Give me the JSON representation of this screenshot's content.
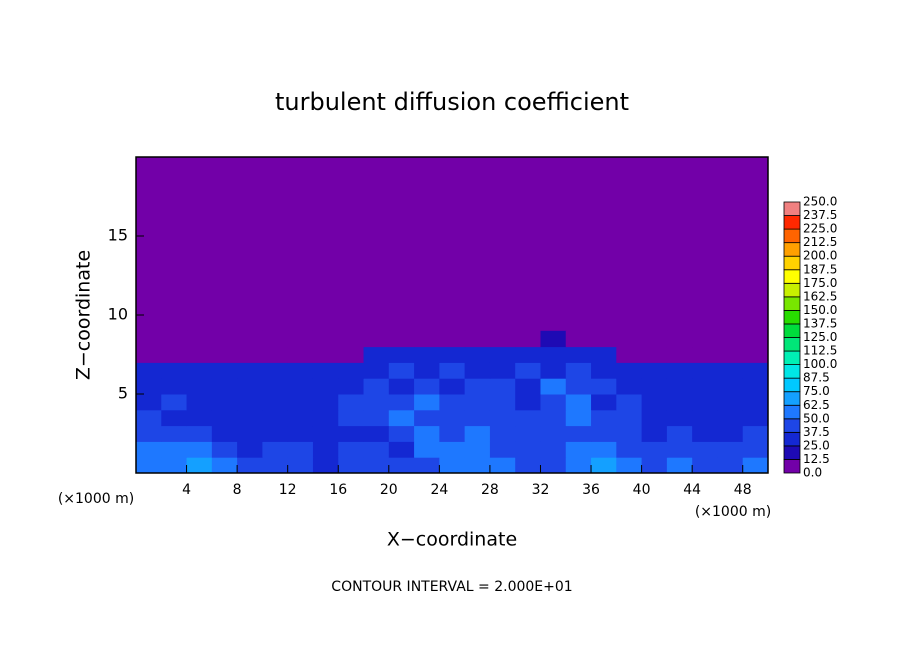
{
  "chart_data": {
    "type": "heatmap",
    "title": "turbulent diffusion coefficient",
    "xlabel": "X−coordinate",
    "ylabel": "Z−coordinate",
    "x_unit": "(×1000 m)",
    "note": "CONTOUR INTERVAL = 2.000E+01",
    "xlim": [
      0,
      50
    ],
    "ylim": [
      0,
      20
    ],
    "xticks": [
      4,
      8,
      12,
      16,
      20,
      24,
      28,
      32,
      36,
      40,
      44,
      48
    ],
    "yticks": [
      5,
      10,
      15
    ],
    "x": [
      1,
      3,
      5,
      7,
      9,
      11,
      13,
      15,
      17,
      19,
      21,
      23,
      25,
      27,
      29,
      31,
      33,
      35,
      37,
      39,
      41,
      43,
      45,
      47,
      49
    ],
    "z": [
      0.5,
      1.5,
      2.5,
      3.5,
      4.5,
      5.5,
      6.5,
      7.5,
      8.5
    ],
    "values": [
      [
        62,
        55,
        70,
        50,
        40,
        38,
        45,
        35,
        42,
        40,
        38,
        45,
        60,
        55,
        50,
        48,
        42,
        55,
        65,
        60,
        45,
        55,
        45,
        40,
        50
      ],
      [
        55,
        60,
        50,
        45,
        35,
        40,
        38,
        33,
        40,
        38,
        35,
        50,
        55,
        60,
        45,
        40,
        45,
        55,
        50,
        45,
        40,
        42,
        38,
        45,
        40
      ],
      [
        45,
        40,
        38,
        35,
        30,
        35,
        33,
        30,
        35,
        35,
        40,
        55,
        45,
        52,
        38,
        48,
        45,
        40,
        38,
        45,
        35,
        38,
        35,
        30,
        38
      ],
      [
        40,
        35,
        33,
        30,
        25,
        33,
        30,
        28,
        38,
        40,
        52,
        45,
        42,
        48,
        45,
        40,
        48,
        50,
        40,
        42,
        35,
        32,
        33,
        30,
        35
      ],
      [
        35,
        38,
        30,
        32,
        28,
        30,
        35,
        30,
        42,
        45,
        38,
        55,
        38,
        42,
        40,
        35,
        45,
        55,
        35,
        38,
        33,
        30,
        32,
        30,
        33
      ],
      [
        33,
        35,
        32,
        30,
        30,
        28,
        32,
        30,
        35,
        38,
        35,
        40,
        35,
        38,
        40,
        30,
        50,
        42,
        38,
        35,
        32,
        30,
        33,
        28,
        30
      ],
      [
        30,
        28,
        30,
        28,
        25,
        25,
        28,
        26,
        30,
        32,
        38,
        35,
        40,
        35,
        35,
        38,
        35,
        40,
        30,
        33,
        30,
        28,
        30,
        25,
        28
      ],
      [
        0,
        0,
        0,
        0,
        0,
        0,
        0,
        0,
        0,
        25,
        30,
        28,
        30,
        28,
        25,
        30,
        28,
        30,
        25,
        0,
        0,
        0,
        0,
        0,
        0
      ],
      [
        0,
        0,
        0,
        0,
        0,
        0,
        0,
        0,
        0,
        0,
        0,
        0,
        0,
        0,
        0,
        0,
        15,
        0,
        0,
        0,
        0,
        0,
        0,
        0,
        0
      ]
    ],
    "colorbar": {
      "levels": [
        {
          "value": 0,
          "label": "0.0"
        },
        {
          "value": 12.5,
          "label": "12.5"
        },
        {
          "value": 25,
          "label": "25.0"
        },
        {
          "value": 37.5,
          "label": "37.5"
        },
        {
          "value": 50,
          "label": "50.0"
        },
        {
          "value": 62.5,
          "label": "62.5"
        },
        {
          "value": 75,
          "label": "75.0"
        },
        {
          "value": 87.5,
          "label": "87.5"
        },
        {
          "value": 100,
          "label": "100.0"
        },
        {
          "value": 112.5,
          "label": "112.5"
        },
        {
          "value": 125,
          "label": "125.0"
        },
        {
          "value": 137.5,
          "label": "137.5"
        },
        {
          "value": 150,
          "label": "150.0"
        },
        {
          "value": 162.5,
          "label": "162.5"
        },
        {
          "value": 175,
          "label": "175.0"
        },
        {
          "value": 187.5,
          "label": "187.5"
        },
        {
          "value": 200,
          "label": "200.0"
        },
        {
          "value": 212.5,
          "label": "212.5"
        },
        {
          "value": 225,
          "label": "225.0"
        },
        {
          "value": 237.5,
          "label": "237.5"
        },
        {
          "value": 250,
          "label": "250.0"
        }
      ],
      "colors": [
        "#7200a8",
        "#1e0ab4",
        "#1428d2",
        "#1e46e6",
        "#1e78ff",
        "#14a0ff",
        "#00c8ff",
        "#00e6e6",
        "#00f0b4",
        "#00e678",
        "#00dc3c",
        "#28dc00",
        "#78e600",
        "#c8f000",
        "#ffff00",
        "#ffd200",
        "#ffa000",
        "#ff6400",
        "#ff2800",
        "#f08080"
      ]
    }
  }
}
